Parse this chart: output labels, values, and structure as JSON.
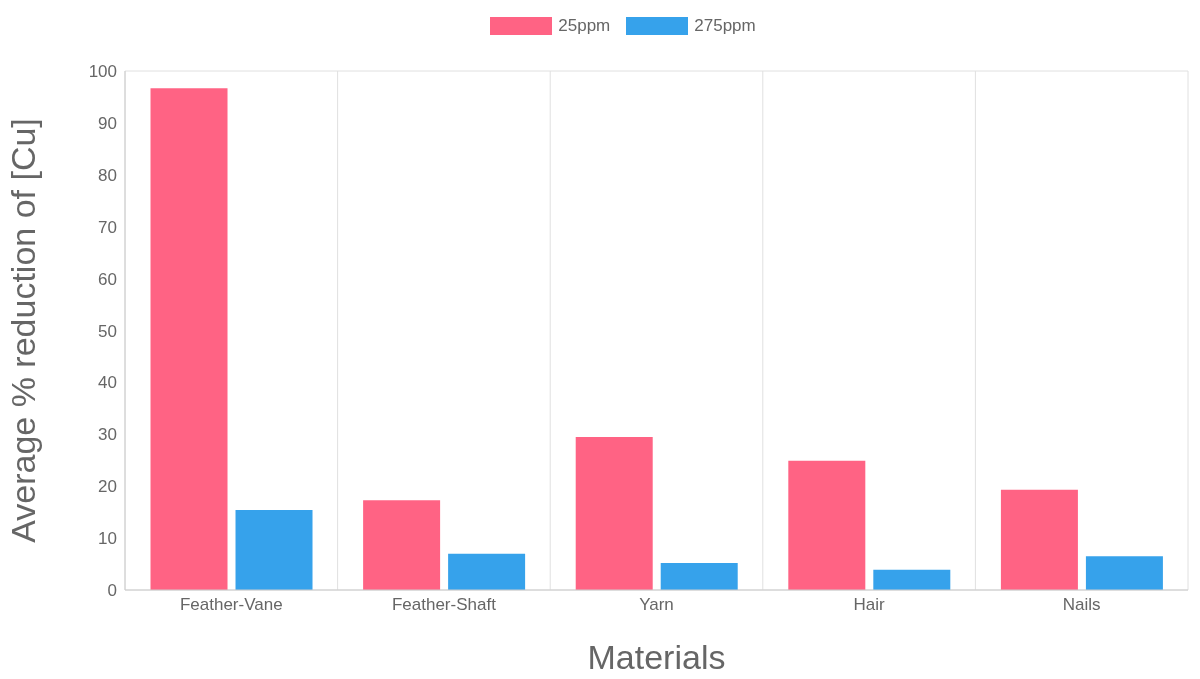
{
  "chart_data": {
    "type": "bar",
    "xlabel": "Materials",
    "ylabel": "Average % reduction of [Cu]",
    "categories": [
      "Feather-Vane",
      "Feather-Shaft",
      "Yarn",
      "Hair",
      "Nails"
    ],
    "series": [
      {
        "name": "25ppm",
        "color": "#ff6384",
        "values": [
          96.7,
          17.3,
          29.5,
          24.9,
          19.3
        ]
      },
      {
        "name": "275ppm",
        "color": "#36a2eb",
        "values": [
          15.4,
          7.0,
          5.2,
          3.9,
          6.5
        ]
      }
    ],
    "ylim": [
      0,
      100
    ],
    "yticks": [
      0,
      10,
      20,
      30,
      40,
      50,
      60,
      70,
      80,
      90,
      100
    ],
    "grid": true,
    "legend": "top"
  }
}
